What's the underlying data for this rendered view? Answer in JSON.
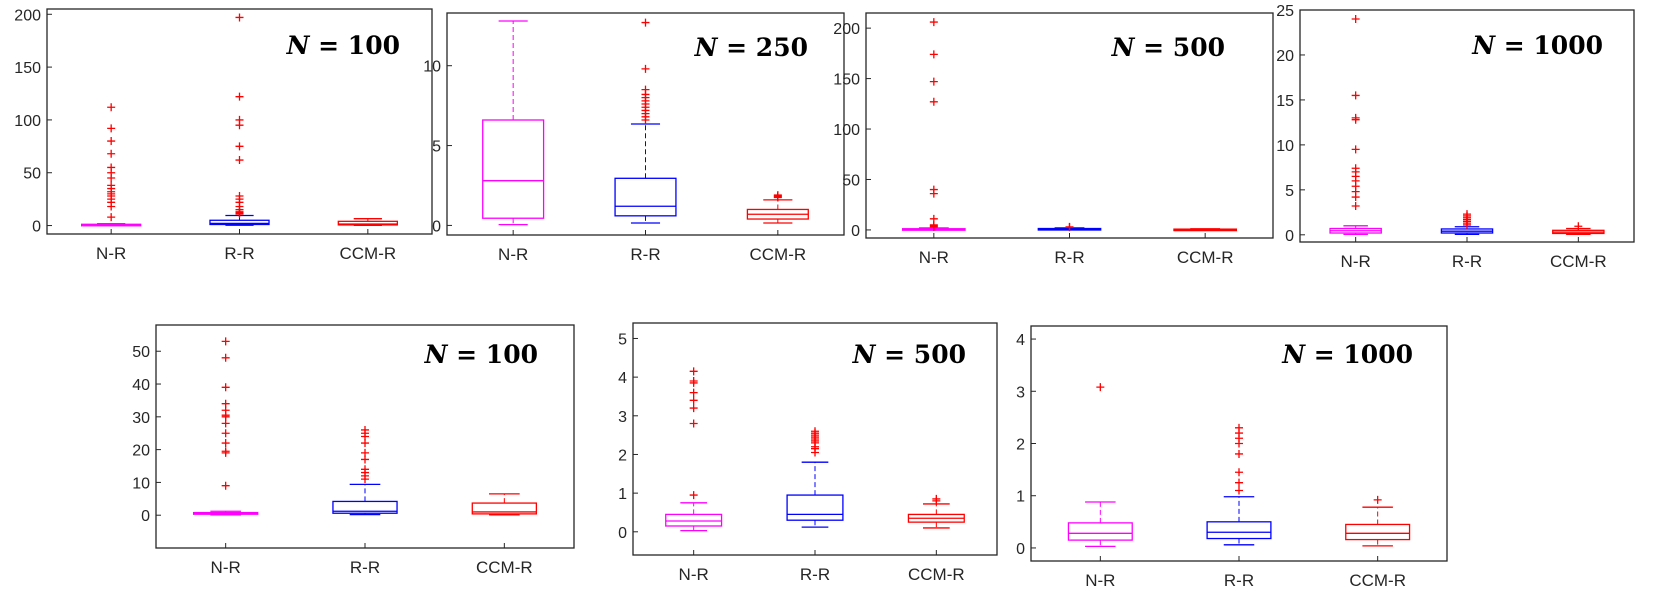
{
  "figure": {
    "colors": {
      "N-R": "#ff00ff",
      "R-R": "#0000ff",
      "CCM-R": "#ff0000",
      "outlier": "#ff0000",
      "axes": "#262626"
    },
    "icons": {
      "outlier_marker": "plus-marker"
    }
  },
  "chart_data": [
    {
      "type": "box",
      "annotation": {
        "var": "N",
        "value": "100"
      },
      "categories": [
        "N-R",
        "R-R",
        "CCM-R"
      ],
      "ylim": [
        -8,
        205
      ],
      "yticks": [
        0,
        50,
        100,
        150,
        200
      ],
      "boxes": [
        {
          "name": "N-R",
          "whislo": 0.2,
          "q1": 0.4,
          "med": 0.8,
          "q3": 1.2,
          "whishi": 1.8,
          "fliers": [
            8,
            18,
            22,
            25,
            28,
            30,
            32,
            35,
            38,
            45,
            50,
            55,
            68,
            80,
            92,
            112
          ]
        },
        {
          "name": "R-R",
          "whislo": 0.3,
          "q1": 1.0,
          "med": 2.0,
          "q3": 5.0,
          "whishi": 9.5,
          "fliers": [
            11,
            12,
            13,
            15,
            18,
            22,
            25,
            28,
            62,
            75,
            95,
            100,
            122,
            197
          ]
        },
        {
          "name": "CCM-R",
          "whislo": 0.2,
          "q1": 0.6,
          "med": 1.5,
          "q3": 4.0,
          "whishi": 6.5,
          "fliers": []
        }
      ]
    },
    {
      "type": "box",
      "annotation": {
        "var": "N",
        "value": "250"
      },
      "categories": [
        "N-R",
        "R-R",
        "CCM-R"
      ],
      "ylim": [
        -0.6,
        13.3
      ],
      "yticks": [
        0,
        5,
        10
      ],
      "boxes": [
        {
          "name": "N-R",
          "whislo": 0.05,
          "q1": 0.45,
          "med": 2.8,
          "q3": 6.6,
          "whishi": 12.8,
          "fliers": []
        },
        {
          "name": "R-R",
          "whislo": 0.15,
          "q1": 0.6,
          "med": 1.2,
          "q3": 2.95,
          "whishi": 6.35,
          "fliers": [
            6.6,
            6.8,
            7.0,
            7.2,
            7.4,
            7.6,
            7.8,
            8.0,
            8.2,
            8.5,
            9.8,
            12.7
          ]
        },
        {
          "name": "CCM-R",
          "whislo": 0.15,
          "q1": 0.4,
          "med": 0.7,
          "q3": 1.0,
          "whishi": 1.6,
          "fliers": [
            1.75,
            1.8,
            1.85,
            1.9
          ]
        }
      ]
    },
    {
      "type": "box",
      "annotation": {
        "var": "N",
        "value": "500"
      },
      "categories": [
        "N-R",
        "R-R",
        "CCM-R"
      ],
      "ylim": [
        -8,
        215
      ],
      "yticks": [
        0,
        50,
        100,
        150,
        200
      ],
      "boxes": [
        {
          "name": "N-R",
          "whislo": 0.1,
          "q1": 0.3,
          "med": 0.6,
          "q3": 1.2,
          "whishi": 2.0,
          "fliers": [
            3,
            4,
            5,
            11,
            36,
            40,
            127,
            147,
            174,
            206
          ]
        },
        {
          "name": "R-R",
          "whislo": 0.2,
          "q1": 0.5,
          "med": 0.9,
          "q3": 1.4,
          "whishi": 2.0,
          "fliers": [
            2.6,
            3.0
          ]
        },
        {
          "name": "CCM-R",
          "whislo": 0.1,
          "q1": 0.3,
          "med": 0.5,
          "q3": 0.8,
          "whishi": 1.2,
          "fliers": []
        }
      ]
    },
    {
      "type": "box",
      "annotation": {
        "var": "N",
        "value": "1000"
      },
      "categories": [
        "N-R",
        "R-R",
        "CCM-R"
      ],
      "ylim": [
        -0.8,
        25
      ],
      "yticks": [
        0,
        5,
        10,
        15,
        20,
        25
      ],
      "boxes": [
        {
          "name": "N-R",
          "whislo": 0.05,
          "q1": 0.2,
          "med": 0.45,
          "q3": 0.7,
          "whishi": 1.0,
          "fliers": [
            3.2,
            4.2,
            4.8,
            5.4,
            6.0,
            6.5,
            7.0,
            7.4,
            9.5,
            12.8,
            13.0,
            15.5,
            24.0
          ]
        },
        {
          "name": "R-R",
          "whislo": 0.05,
          "q1": 0.2,
          "med": 0.4,
          "q3": 0.65,
          "whishi": 0.9,
          "fliers": [
            1.1,
            1.3,
            1.5,
            1.7,
            1.9,
            2.1,
            2.3
          ]
        },
        {
          "name": "CCM-R",
          "whislo": 0.05,
          "q1": 0.15,
          "med": 0.3,
          "q3": 0.5,
          "whishi": 0.7,
          "fliers": [
            0.95
          ]
        }
      ]
    },
    {
      "type": "box",
      "annotation": {
        "var": "N",
        "value": "100"
      },
      "categories": [
        "N-R",
        "R-R",
        "CCM-R"
      ],
      "ylim": [
        -10,
        58
      ],
      "yticks": [
        0,
        10,
        20,
        30,
        40,
        50
      ],
      "boxes": [
        {
          "name": "N-R",
          "whislo": 0.1,
          "q1": 0.3,
          "med": 0.5,
          "q3": 0.8,
          "whishi": 1.2,
          "fliers": [
            9,
            19,
            19.5,
            22,
            25,
            28,
            30,
            30.5,
            32,
            34,
            39,
            48,
            53
          ]
        },
        {
          "name": "R-R",
          "whislo": 0.2,
          "q1": 0.6,
          "med": 1.2,
          "q3": 4.2,
          "whishi": 9.4,
          "fliers": [
            11,
            12,
            13,
            14,
            17,
            19,
            22,
            24,
            25,
            26
          ]
        },
        {
          "name": "CCM-R",
          "whislo": 0.1,
          "q1": 0.4,
          "med": 1.0,
          "q3": 3.7,
          "whishi": 6.5,
          "fliers": []
        }
      ]
    },
    {
      "type": "box",
      "annotation": {
        "var": "N",
        "value": "500"
      },
      "categories": [
        "N-R",
        "R-R",
        "CCM-R"
      ],
      "ylim": [
        -0.6,
        5.4
      ],
      "yticks": [
        0,
        1,
        2,
        3,
        4,
        5
      ],
      "boxes": [
        {
          "name": "N-R",
          "whislo": 0.03,
          "q1": 0.15,
          "med": 0.28,
          "q3": 0.45,
          "whishi": 0.75,
          "fliers": [
            0.95,
            2.8,
            3.2,
            3.4,
            3.6,
            3.85,
            3.9,
            4.15
          ]
        },
        {
          "name": "R-R",
          "whislo": 0.12,
          "q1": 0.3,
          "med": 0.45,
          "q3": 0.95,
          "whishi": 1.8,
          "fliers": [
            2.05,
            2.15,
            2.2,
            2.3,
            2.35,
            2.4,
            2.45,
            2.5,
            2.55,
            2.6
          ]
        },
        {
          "name": "CCM-R",
          "whislo": 0.1,
          "q1": 0.25,
          "med": 0.35,
          "q3": 0.45,
          "whishi": 0.72,
          "fliers": [
            0.8,
            0.85
          ]
        }
      ]
    },
    {
      "type": "box",
      "annotation": {
        "var": "N",
        "value": "1000"
      },
      "categories": [
        "N-R",
        "R-R",
        "CCM-R"
      ],
      "ylim": [
        -0.25,
        4.25
      ],
      "yticks": [
        0,
        1,
        2,
        3,
        4
      ],
      "boxes": [
        {
          "name": "N-R",
          "whislo": 0.03,
          "q1": 0.15,
          "med": 0.28,
          "q3": 0.48,
          "whishi": 0.88,
          "fliers": [
            3.08
          ]
        },
        {
          "name": "R-R",
          "whislo": 0.06,
          "q1": 0.18,
          "med": 0.3,
          "q3": 0.5,
          "whishi": 0.98,
          "fliers": [
            1.1,
            1.25,
            1.45,
            1.8,
            2.0,
            2.1,
            2.2,
            2.3
          ]
        },
        {
          "name": "CCM-R",
          "whislo": 0.04,
          "q1": 0.16,
          "med": 0.28,
          "q3": 0.45,
          "whishi": 0.78,
          "fliers": [
            0.92
          ]
        }
      ]
    }
  ]
}
